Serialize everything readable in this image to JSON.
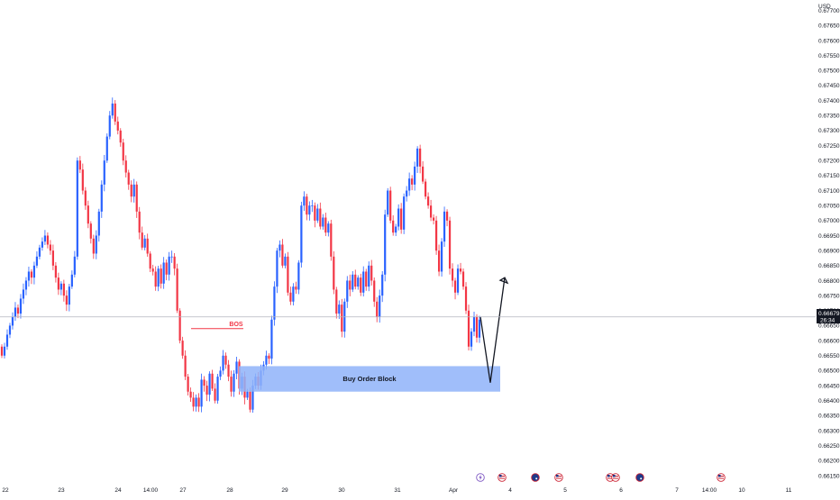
{
  "chart_data": {
    "type": "candlestick",
    "currency": "USD",
    "y_ticks": [
      "0.67700",
      "0.67650",
      "0.67600",
      "0.67550",
      "0.67500",
      "0.67450",
      "0.67400",
      "0.67350",
      "0.67300",
      "0.67250",
      "0.67200",
      "0.67150",
      "0.67100",
      "0.67050",
      "0.67000",
      "0.66950",
      "0.66900",
      "0.66850",
      "0.66800",
      "0.66750",
      "0.66700",
      "0.66650",
      "0.66600",
      "0.66550",
      "0.66500",
      "0.66450",
      "0.66400",
      "0.66350",
      "0.66300",
      "0.66250",
      "0.66200",
      "0.66150"
    ],
    "ylim": [
      0.66135,
      0.67735
    ],
    "x_ticks": [
      "22",
      "23",
      "24",
      "14:00",
      "27",
      "28",
      "29",
      "30",
      "31",
      "Apr",
      "4",
      "5",
      "6",
      "7",
      "14:00",
      "10",
      "11"
    ],
    "current_price": "0.66679",
    "countdown": "26:34",
    "annotations": {
      "bos_label": "BOS",
      "bos_level": 0.6664,
      "order_block_label": "Buy Order Block",
      "order_block_top": 0.66515,
      "order_block_bottom": 0.6643,
      "projection_points": [
        [
          0.6668,
          0.6646
        ],
        [
          0.6646,
          0.6681
        ]
      ]
    },
    "colors": {
      "up": "#2962ff",
      "down": "#f23645",
      "order_block_fill": "#8fb3f9",
      "bos_line": "#f23645",
      "price_line": "#b2b5be",
      "price_label_bg": "#131722"
    },
    "event_icons": [
      "lightning-icon",
      "us-flag-icon",
      "au-flag-icon",
      "us-flag-icon",
      "us-flag-icon",
      "us-flag-icon",
      "au-flag-icon",
      "us-flag-icon"
    ],
    "candles_close": [
      0.6655,
      0.6658,
      0.6662,
      0.6665,
      0.6668,
      0.6671,
      0.6669,
      0.6674,
      0.6677,
      0.668,
      0.6683,
      0.6681,
      0.6685,
      0.6688,
      0.6691,
      0.6693,
      0.6695,
      0.6692,
      0.669,
      0.6685,
      0.6681,
      0.6677,
      0.6679,
      0.6675,
      0.6672,
      0.6678,
      0.6682,
      0.6688,
      0.672,
      0.6717,
      0.671,
      0.6705,
      0.6699,
      0.6694,
      0.6689,
      0.6695,
      0.6703,
      0.6712,
      0.672,
      0.6728,
      0.6735,
      0.6739,
      0.6733,
      0.673,
      0.6726,
      0.672,
      0.6716,
      0.6712,
      0.6708,
      0.6712,
      0.6703,
      0.6696,
      0.6691,
      0.6694,
      0.6689,
      0.6684,
      0.6683,
      0.6678,
      0.6684,
      0.6679,
      0.6686,
      0.6682,
      0.6688,
      0.6688,
      0.6684,
      0.667,
      0.666,
      0.6655,
      0.6648,
      0.6643,
      0.6641,
      0.6638,
      0.6641,
      0.6638,
      0.6647,
      0.6645,
      0.6642,
      0.6649,
      0.6644,
      0.664,
      0.6648,
      0.665,
      0.6655,
      0.6652,
      0.6648,
      0.6643,
      0.6649,
      0.6653,
      0.6644,
      0.6648,
      0.6641,
      0.6643,
      0.6637,
      0.6645,
      0.6648,
      0.6645,
      0.665,
      0.6652,
      0.6655,
      0.6654,
      0.6667,
      0.6678,
      0.669,
      0.6692,
      0.6685,
      0.6688,
      0.6676,
      0.6673,
      0.6678,
      0.6677,
      0.6686,
      0.6705,
      0.6708,
      0.6702,
      0.6705,
      0.6705,
      0.67,
      0.6704,
      0.6698,
      0.6701,
      0.6696,
      0.6699,
      0.6688,
      0.6677,
      0.6669,
      0.6672,
      0.6663,
      0.6673,
      0.668,
      0.6677,
      0.6682,
      0.6678,
      0.6681,
      0.6676,
      0.6683,
      0.6678,
      0.6685,
      0.668,
      0.6673,
      0.6668,
      0.6675,
      0.6682,
      0.6702,
      0.671,
      0.67,
      0.6696,
      0.6698,
      0.6704,
      0.6697,
      0.6708,
      0.671,
      0.6714,
      0.6712,
      0.6718,
      0.6724,
      0.6718,
      0.6713,
      0.6708,
      0.6705,
      0.6701,
      0.67,
      0.669,
      0.6683,
      0.6693,
      0.6703,
      0.67,
      0.6684,
      0.668,
      0.6676,
      0.6684,
      0.6683,
      0.6678,
      0.667,
      0.6658,
      0.6663,
      0.6668,
      0.6661,
      0.6667
    ]
  },
  "ui": {
    "currency_label": "USD"
  }
}
